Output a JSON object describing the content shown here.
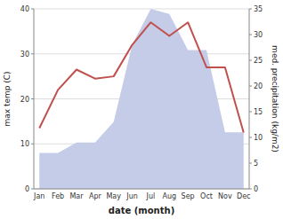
{
  "chart_data": {
    "type": "line",
    "categories": [
      "Jan",
      "Feb",
      "Mar",
      "Apr",
      "May",
      "Jun",
      "Jul",
      "Aug",
      "Sep",
      "Oct",
      "Nov",
      "Dec"
    ],
    "series": [
      {
        "type": "line",
        "color": "#c0504d",
        "values": [
          13.5,
          22.0,
          26.5,
          24.5,
          25.0,
          32.0,
          37.0,
          34.0,
          37.0,
          27.0,
          27.0,
          12.5
        ]
      },
      {
        "type": "area",
        "axis": "y2",
        "color": "#c5cce8",
        "values": [
          7.0,
          7.0,
          9.0,
          9.0,
          13.0,
          28.0,
          35.0,
          34.0,
          27.0,
          27.0,
          11.0,
          11.0
        ]
      }
    ],
    "xlabel": "date (month)",
    "ylabel": "max temp (C)",
    "y2label": "med. precipitation (kg/m2)",
    "ylim": [
      0,
      40
    ],
    "yticks": [
      0,
      10,
      20,
      30,
      40
    ],
    "y2lim": [
      0,
      35
    ],
    "y2ticks": [
      0,
      5,
      10,
      15,
      20,
      25,
      30,
      35
    ],
    "grid": true
  }
}
